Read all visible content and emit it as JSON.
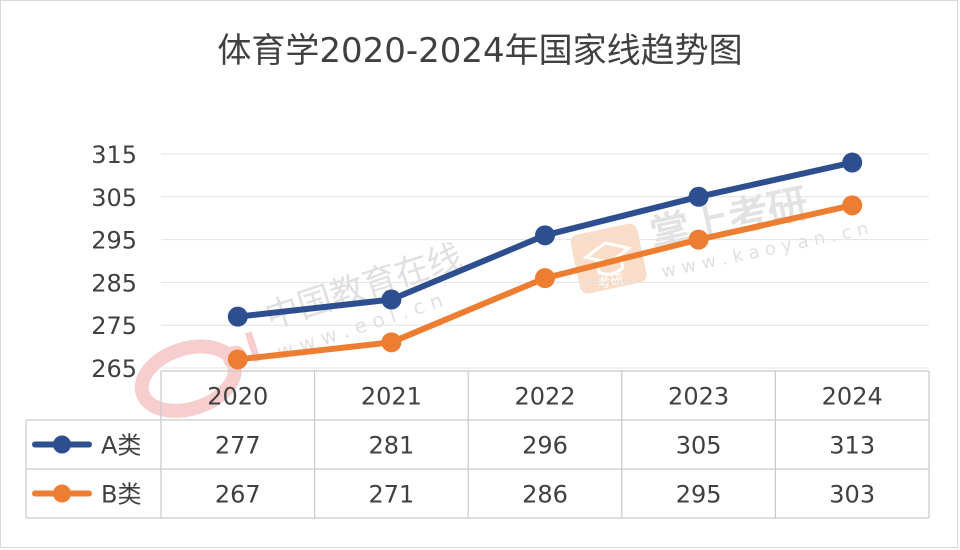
{
  "chart_data": {
    "type": "line",
    "title": "体育学2020-2024年国家线趋势图",
    "categories": [
      "2020",
      "2021",
      "2022",
      "2023",
      "2024"
    ],
    "series": [
      {
        "name": "A类",
        "values": [
          277,
          281,
          296,
          305,
          313
        ],
        "color": "#2e4f8f"
      },
      {
        "name": "B类",
        "values": [
          267,
          271,
          286,
          295,
          303
        ],
        "color": "#ed7d31"
      }
    ],
    "y_ticks": [
      "315",
      "305",
      "295",
      "285",
      "275",
      "265"
    ],
    "ylim": [
      265,
      315
    ],
    "grid": true,
    "legend": "data-table-left",
    "data_table": true
  },
  "watermarks": {
    "left_text": "中国教育在线",
    "left_url": "w w w . e o l . c n",
    "left_logo": "eol",
    "right_text": "掌上考研",
    "right_url": "w w w . k a o y a n . c n",
    "right_icon": "graduation-cap-icon",
    "right_icon_sub": "考研"
  }
}
